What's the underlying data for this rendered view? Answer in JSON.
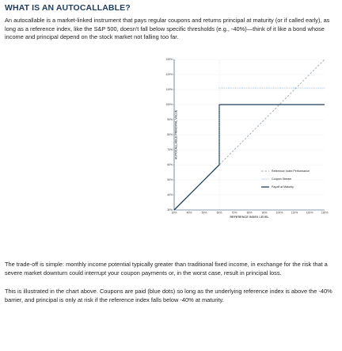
{
  "header": {
    "title": "WHAT IS AN AUTOCALLABLE?",
    "intro": "An autocallable is a market-linked instrument that pays regular coupons and returns principal at maturity (or if called early), as long as a reference index, like the S&P 500, doesn't fall below specific thresholds (e.g., -40%)—think of it like a bond whose income and principal depend on the stock market not falling too far."
  },
  "body": {
    "tradeoff": "The trade-off is simple: monthly income potential typically greater than traditional fixed income, in exchange for the risk that a severe market downturn could interrupt your coupon payments or, in the worst case, result in principal loss.",
    "illustration": "This is illustrated in the chart above. Coupons are paid (blue dots) so long as the underlying reference index is above the -40% barrier, and principal is only at risk if the reference index falls below -40% at maturity."
  },
  "chart_data": {
    "type": "line",
    "xlabel": "REFERENCE INDEX LEVEL",
    "ylabel": "AUTOCALLABLE PRINCIPAL VALUE",
    "x_ticks": [
      "30%",
      "40%",
      "50%",
      "60%",
      "70%",
      "80%",
      "90%",
      "100%",
      "110%",
      "120%",
      "130%"
    ],
    "y_ticks": [
      "30%",
      "40%",
      "50%",
      "60%",
      "70%",
      "80%",
      "90%",
      "100%",
      "110%",
      "120%",
      "130%"
    ],
    "xlim": [
      30,
      130
    ],
    "ylim": [
      30,
      130
    ],
    "barrier": 60,
    "legend_position": "right",
    "series": [
      {
        "name": "Reference Index Performance",
        "x": [
          30,
          130
        ],
        "y": [
          30,
          130
        ],
        "color": "#9aa8b8"
      },
      {
        "name": "Coupon Stream",
        "x": [
          60,
          130
        ],
        "y": [
          111,
          111
        ],
        "color": "#8fb3d3"
      },
      {
        "name": "Payoff at Maturity",
        "x": [
          30,
          60,
          60,
          130
        ],
        "y": [
          30,
          60,
          100,
          100
        ],
        "color": "#1f3d5c"
      }
    ]
  }
}
